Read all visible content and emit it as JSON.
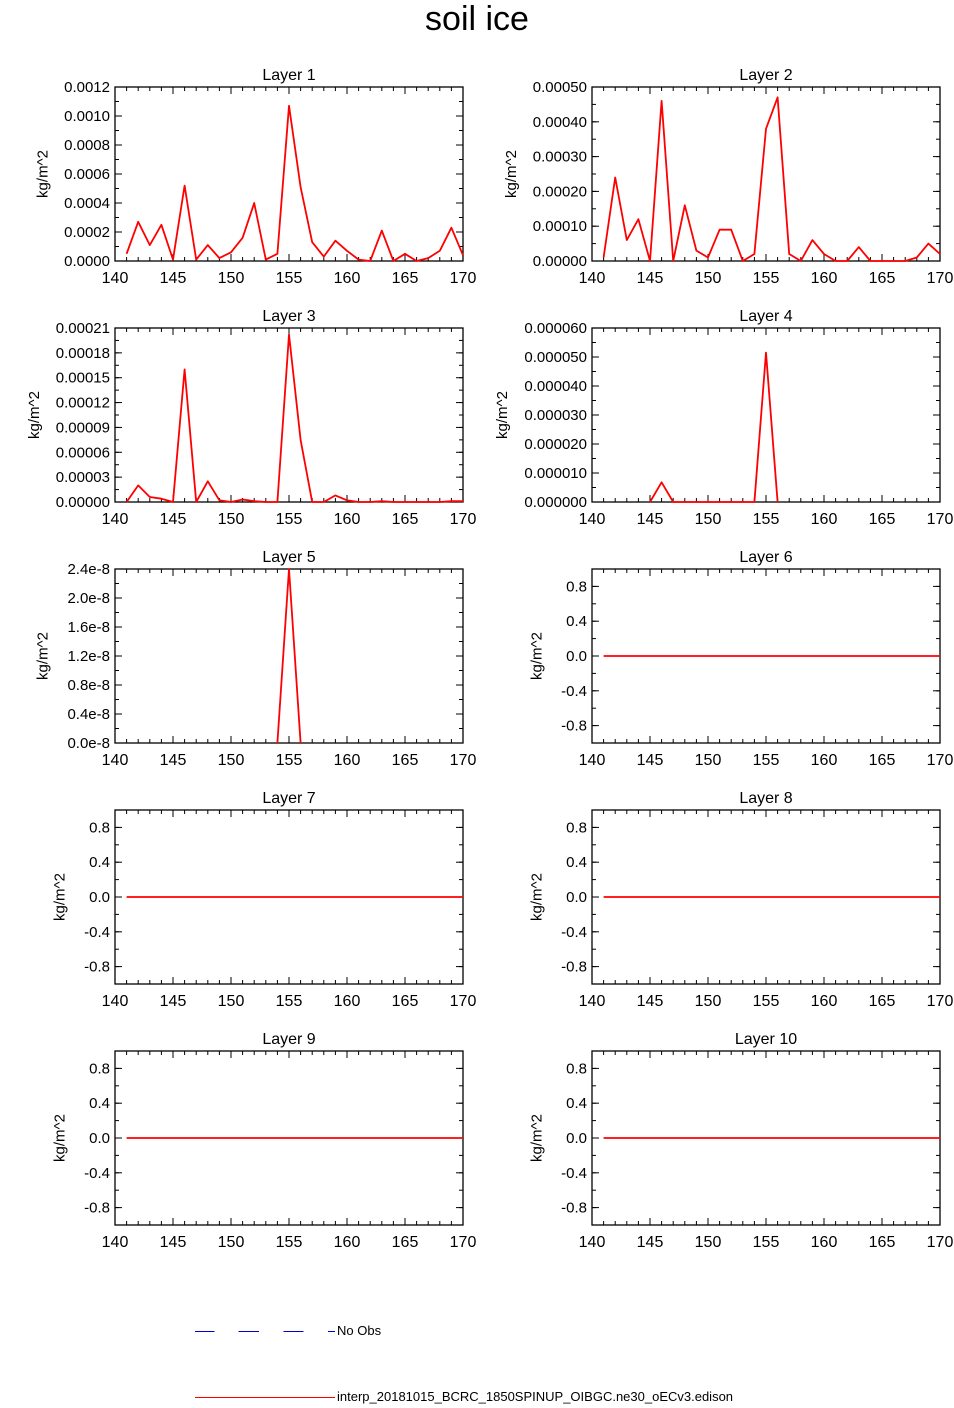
{
  "title": "soil ice",
  "legend": {
    "obs_label": "No Obs",
    "model_label": "interp_20181015_BCRC_1850SPINUP_OIBGC.ne30_oECv3.edison",
    "obs_color": "#0000cc",
    "model_color": "#ff0000"
  },
  "chart_data": [
    {
      "type": "line",
      "title": "Layer 1",
      "ylabel": "kg/m^2",
      "xlim": [
        140,
        170
      ],
      "ylim": [
        0,
        0.0012
      ],
      "xticks": [
        140,
        145,
        150,
        155,
        160,
        165,
        170
      ],
      "xtick_labels": [
        "140",
        "145",
        "150",
        "155",
        "160",
        "165",
        "170"
      ],
      "yticks": [
        0,
        0.0002,
        0.0004,
        0.0006,
        0.0008,
        0.001,
        0.0012
      ],
      "ytick_labels": [
        "0.0000",
        "0.0002",
        "0.0004",
        "0.0006",
        "0.0008",
        "0.0010",
        "0.0012"
      ],
      "x": [
        141,
        142,
        143,
        144,
        145,
        146,
        147,
        148,
        149,
        150,
        151,
        152,
        153,
        154,
        155,
        156,
        157,
        158,
        159,
        160,
        161,
        162,
        163,
        164,
        165,
        166,
        167,
        168,
        169,
        170
      ],
      "series": [
        {
          "color": "#ff0000",
          "values": [
            5e-05,
            0.00027,
            0.00011,
            0.00025,
            1e-05,
            0.00052,
            1e-05,
            0.00011,
            2e-05,
            6e-05,
            0.00016,
            0.0004,
            1e-05,
            5e-05,
            0.00107,
            0.00051,
            0.00013,
            3e-05,
            0.00014,
            7e-05,
            1e-05,
            0.0,
            0.00021,
            0.0,
            5e-05,
            0.0,
            2e-05,
            7e-05,
            0.00023,
            4e-05
          ]
        }
      ]
    },
    {
      "type": "line",
      "title": "Layer 2",
      "ylabel": "kg/m^2",
      "xlim": [
        140,
        170
      ],
      "ylim": [
        0,
        0.0005
      ],
      "xticks": [
        140,
        145,
        150,
        155,
        160,
        165,
        170
      ],
      "xtick_labels": [
        "140",
        "145",
        "150",
        "155",
        "160",
        "165",
        "170"
      ],
      "yticks": [
        0,
        0.0001,
        0.0002,
        0.0003,
        0.0004,
        0.0005
      ],
      "ytick_labels": [
        "0.00000",
        "0.00010",
        "0.00020",
        "0.00030",
        "0.00040",
        "0.00050"
      ],
      "x": [
        141,
        142,
        143,
        144,
        145,
        146,
        147,
        148,
        149,
        150,
        151,
        152,
        153,
        154,
        155,
        156,
        157,
        158,
        159,
        160,
        161,
        162,
        163,
        164,
        165,
        166,
        167,
        168,
        169,
        170
      ],
      "series": [
        {
          "color": "#ff0000",
          "values": [
            1e-05,
            0.00024,
            6e-05,
            0.00012,
            0.0,
            0.00046,
            0.0,
            0.00016,
            3e-05,
            1e-05,
            9e-05,
            9e-05,
            0.0,
            2e-05,
            0.00038,
            0.00047,
            2e-05,
            0.0,
            6e-05,
            2e-05,
            0.0,
            0.0,
            4e-05,
            0.0,
            0.0,
            0.0,
            0.0,
            1e-05,
            5e-05,
            2e-05
          ]
        }
      ]
    },
    {
      "type": "line",
      "title": "Layer 3",
      "ylabel": "kg/m^2",
      "xlim": [
        140,
        170
      ],
      "ylim": [
        0,
        0.00021
      ],
      "xticks": [
        140,
        145,
        150,
        155,
        160,
        165,
        170
      ],
      "xtick_labels": [
        "140",
        "145",
        "150",
        "155",
        "160",
        "165",
        "170"
      ],
      "yticks": [
        0,
        3e-05,
        6e-05,
        9e-05,
        0.00012,
        0.00015,
        0.00018,
        0.00021
      ],
      "ytick_labels": [
        "0.00000",
        "0.00003",
        "0.00006",
        "0.00009",
        "0.00012",
        "0.00015",
        "0.00018",
        "0.00021"
      ],
      "x": [
        141,
        142,
        143,
        144,
        145,
        146,
        147,
        148,
        149,
        150,
        151,
        152,
        153,
        154,
        155,
        156,
        157,
        158,
        159,
        160,
        161,
        162,
        163,
        164,
        165,
        166,
        167,
        168,
        169,
        170
      ],
      "series": [
        {
          "color": "#ff0000",
          "values": [
            0.0,
            2e-05,
            6e-06,
            4e-06,
            0.0,
            0.00016,
            0.0,
            2.5e-05,
            2e-06,
            0.0,
            3e-06,
            1e-06,
            0.0,
            0.0,
            0.000202,
            7.5e-05,
            0.0,
            0.0,
            8e-06,
            2e-06,
            0.0,
            0.0,
            1e-06,
            0.0,
            0.0,
            0.0,
            0.0,
            0.0,
            1e-06,
            1e-06
          ]
        }
      ]
    },
    {
      "type": "line",
      "title": "Layer 4",
      "ylabel": "kg/m^2",
      "xlim": [
        140,
        170
      ],
      "ylim": [
        0,
        6e-05
      ],
      "xticks": [
        140,
        145,
        150,
        155,
        160,
        165,
        170
      ],
      "xtick_labels": [
        "140",
        "145",
        "150",
        "155",
        "160",
        "165",
        "170"
      ],
      "yticks": [
        0,
        1e-05,
        2e-05,
        3e-05,
        4e-05,
        5e-05,
        6e-05
      ],
      "ytick_labels": [
        "0.000000",
        "0.000010",
        "0.000020",
        "0.000030",
        "0.000040",
        "0.000050",
        "0.000060"
      ],
      "x": [
        145,
        146,
        147,
        148,
        149,
        150,
        151,
        152,
        153,
        154,
        155,
        156
      ],
      "series": [
        {
          "color": "#ff0000",
          "values": [
            0.0,
            6.8e-06,
            0.0,
            0.0,
            0.0,
            0.0,
            0.0,
            0.0,
            0.0,
            0.0,
            5.15e-05,
            0.0
          ]
        }
      ]
    },
    {
      "type": "line",
      "title": "Layer 5",
      "ylabel": "kg/m^2",
      "xlim": [
        140,
        170
      ],
      "ylim": [
        0,
        2.4e-08
      ],
      "xticks": [
        140,
        145,
        150,
        155,
        160,
        165,
        170
      ],
      "xtick_labels": [
        "140",
        "145",
        "150",
        "155",
        "160",
        "165",
        "170"
      ],
      "yticks": [
        0,
        4e-09,
        8e-09,
        1.2e-08,
        1.6e-08,
        2e-08,
        2.4e-08
      ],
      "ytick_labels": [
        "0.0e-8",
        "0.4e-8",
        "0.8e-8",
        "1.2e-8",
        "1.6e-8",
        "2.0e-8",
        "2.4e-8"
      ],
      "x": [
        154,
        155,
        156
      ],
      "series": [
        {
          "color": "#ff0000",
          "values": [
            0.0,
            2.4e-08,
            0.0
          ]
        }
      ]
    },
    {
      "type": "line",
      "title": "Layer 6",
      "ylabel": "kg/m^2",
      "xlim": [
        140,
        170
      ],
      "ylim": [
        -1,
        1
      ],
      "xticks": [
        140,
        145,
        150,
        155,
        160,
        165,
        170
      ],
      "xtick_labels": [
        "140",
        "145",
        "150",
        "155",
        "160",
        "165",
        "170"
      ],
      "yticks": [
        -0.8,
        -0.4,
        0.0,
        0.4,
        0.8
      ],
      "ytick_labels": [
        "-0.8",
        "-0.4",
        "0.0",
        "0.4",
        "0.8"
      ],
      "x": [
        141,
        170
      ],
      "series": [
        {
          "color": "#ff0000",
          "values": [
            0,
            0
          ]
        }
      ]
    },
    {
      "type": "line",
      "title": "Layer 7",
      "ylabel": "kg/m^2",
      "xlim": [
        140,
        170
      ],
      "ylim": [
        -1,
        1
      ],
      "xticks": [
        140,
        145,
        150,
        155,
        160,
        165,
        170
      ],
      "xtick_labels": [
        "140",
        "145",
        "150",
        "155",
        "160",
        "165",
        "170"
      ],
      "yticks": [
        -0.8,
        -0.4,
        0.0,
        0.4,
        0.8
      ],
      "ytick_labels": [
        "-0.8",
        "-0.4",
        "0.0",
        "0.4",
        "0.8"
      ],
      "x": [
        141,
        170
      ],
      "series": [
        {
          "color": "#ff0000",
          "values": [
            0,
            0
          ]
        }
      ]
    },
    {
      "type": "line",
      "title": "Layer 8",
      "ylabel": "kg/m^2",
      "xlim": [
        140,
        170
      ],
      "ylim": [
        -1,
        1
      ],
      "xticks": [
        140,
        145,
        150,
        155,
        160,
        165,
        170
      ],
      "xtick_labels": [
        "140",
        "145",
        "150",
        "155",
        "160",
        "165",
        "170"
      ],
      "yticks": [
        -0.8,
        -0.4,
        0.0,
        0.4,
        0.8
      ],
      "ytick_labels": [
        "-0.8",
        "-0.4",
        "0.0",
        "0.4",
        "0.8"
      ],
      "x": [
        141,
        170
      ],
      "series": [
        {
          "color": "#ff0000",
          "values": [
            0,
            0
          ]
        }
      ]
    },
    {
      "type": "line",
      "title": "Layer 9",
      "ylabel": "kg/m^2",
      "xlim": [
        140,
        170
      ],
      "ylim": [
        -1,
        1
      ],
      "xticks": [
        140,
        145,
        150,
        155,
        160,
        165,
        170
      ],
      "xtick_labels": [
        "140",
        "145",
        "150",
        "155",
        "160",
        "165",
        "170"
      ],
      "yticks": [
        -0.8,
        -0.4,
        0.0,
        0.4,
        0.8
      ],
      "ytick_labels": [
        "-0.8",
        "-0.4",
        "0.0",
        "0.4",
        "0.8"
      ],
      "x": [
        141,
        170
      ],
      "series": [
        {
          "color": "#ff0000",
          "values": [
            0,
            0
          ]
        }
      ]
    },
    {
      "type": "line",
      "title": "Layer 10",
      "ylabel": "kg/m^2",
      "xlim": [
        140,
        170
      ],
      "ylim": [
        -1,
        1
      ],
      "xticks": [
        140,
        145,
        150,
        155,
        160,
        165,
        170
      ],
      "xtick_labels": [
        "140",
        "145",
        "150",
        "155",
        "160",
        "165",
        "170"
      ],
      "yticks": [
        -0.8,
        -0.4,
        0.0,
        0.4,
        0.8
      ],
      "ytick_labels": [
        "-0.8",
        "-0.4",
        "0.0",
        "0.4",
        "0.8"
      ],
      "x": [
        141,
        170
      ],
      "series": [
        {
          "color": "#ff0000",
          "values": [
            0,
            0
          ]
        }
      ]
    }
  ]
}
